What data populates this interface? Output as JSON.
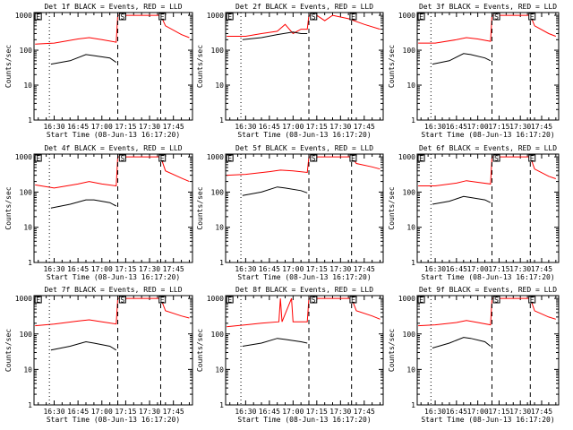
{
  "chart_data": [
    {
      "type": "line",
      "title": "Det 1f BLACK = Events, RED = LLD",
      "xlabel": "Start Time (08-Jun-13 16:17:20)",
      "ylabel": "Counts/sec",
      "xlim": [
        "16:17:20",
        "17:57:00"
      ],
      "ylim": [
        1,
        1200
      ],
      "yscale": "log",
      "x_ticks": [
        "16:30",
        "16:45",
        "17:00",
        "17:15",
        "17:30",
        "17:45"
      ],
      "y_ticks": [
        "1",
        "10",
        "100",
        "1000"
      ],
      "markers": [
        {
          "time": "16:27",
          "style": "dotted"
        },
        {
          "time": "17:10",
          "style": "dashed"
        },
        {
          "time": "17:37",
          "style": "dashed"
        }
      ],
      "box_labels": [
        {
          "time": "16:18",
          "label": "E"
        },
        {
          "time": "17:11",
          "label": "S"
        },
        {
          "time": "17:36",
          "label": "E"
        }
      ],
      "series": [
        {
          "color": "#ff0000",
          "x": [
            "16:18",
            "16:30",
            "16:45",
            "16:52",
            "17:00",
            "17:09",
            "17:10",
            "17:37",
            "17:40",
            "17:50",
            "17:55"
          ],
          "y": [
            150,
            160,
            210,
            230,
            200,
            170,
            1000,
            1000,
            500,
            280,
            230
          ]
        },
        {
          "color": "#000000",
          "x": [
            "16:28",
            "16:40",
            "16:50",
            "16:55",
            "17:05",
            "17:09"
          ],
          "y": [
            40,
            50,
            75,
            70,
            60,
            45
          ]
        }
      ]
    },
    {
      "type": "line",
      "title": "Det 2f BLACK = Events, RED = LLD",
      "xlabel": "Start Time (08-Jun-13 16:17:20)",
      "ylabel": "Counts/sec",
      "xlim": [
        "16:17:20",
        "17:57:00"
      ],
      "ylim": [
        1,
        1200
      ],
      "yscale": "log",
      "x_ticks": [
        "16:30",
        "16:45",
        "17:00",
        "17:15",
        "17:30",
        "17:45"
      ],
      "y_ticks": [
        "1",
        "10",
        "100",
        "1000"
      ],
      "markers": [
        {
          "time": "16:27",
          "style": "dotted"
        },
        {
          "time": "17:10",
          "style": "dashed"
        },
        {
          "time": "17:37",
          "style": "dashed"
        }
      ],
      "box_labels": [
        {
          "time": "16:18",
          "label": "E"
        },
        {
          "time": "17:11",
          "label": "S"
        },
        {
          "time": "17:36",
          "label": "E"
        }
      ],
      "series": [
        {
          "color": "#ff0000",
          "x": [
            "16:18",
            "16:30",
            "16:40",
            "16:50",
            "16:55",
            "17:00",
            "17:05",
            "17:09",
            "17:10",
            "17:15",
            "17:20",
            "17:25",
            "17:35",
            "17:45",
            "17:55"
          ],
          "y": [
            250,
            250,
            300,
            350,
            550,
            300,
            400,
            400,
            1000,
            1000,
            700,
            1000,
            800,
            550,
            400
          ]
        },
        {
          "color": "#000000",
          "x": [
            "16:28",
            "16:40",
            "16:50",
            "17:00",
            "17:05",
            "17:09"
          ],
          "y": [
            200,
            230,
            280,
            330,
            300,
            300
          ]
        }
      ]
    },
    {
      "type": "line",
      "title": "Det 3f BLACK = Events, RED = LLD",
      "xlabel": "Start Time (08-Jun-13 16:17:20)",
      "ylabel": "Counts/sec",
      "xlim": [
        "16:17:20",
        "17:57:00"
      ],
      "ylim": [
        1,
        1200
      ],
      "yscale": "log",
      "x_ticks": [
        "16:30",
        "16:45",
        "17:00",
        "17:15",
        "17:30",
        "17:45"
      ],
      "y_ticks": [
        "1",
        "10",
        "100",
        "1000"
      ],
      "markers": [
        {
          "time": "16:27",
          "style": "dotted"
        },
        {
          "time": "17:10",
          "style": "dashed"
        },
        {
          "time": "17:37",
          "style": "dashed"
        }
      ],
      "box_labels": [
        {
          "time": "16:18",
          "label": "E"
        },
        {
          "time": "17:11",
          "label": "S"
        },
        {
          "time": "17:36",
          "label": "E"
        }
      ],
      "series": [
        {
          "color": "#ff0000",
          "x": [
            "16:18",
            "16:30",
            "16:45",
            "16:52",
            "17:00",
            "17:09",
            "17:10",
            "17:37",
            "17:40",
            "17:50",
            "17:55"
          ],
          "y": [
            160,
            160,
            200,
            230,
            210,
            180,
            1000,
            1000,
            500,
            300,
            250
          ]
        },
        {
          "color": "#000000",
          "x": [
            "16:28",
            "16:40",
            "16:50",
            "16:55",
            "17:05",
            "17:09"
          ],
          "y": [
            40,
            50,
            80,
            75,
            60,
            50
          ]
        }
      ]
    },
    {
      "type": "line",
      "title": "Det 4f BLACK = Events, RED = LLD",
      "xlabel": "Start Time (08-Jun-13 16:17:20)",
      "ylabel": "Counts/sec",
      "xlim": [
        "16:17:20",
        "17:57:00"
      ],
      "ylim": [
        1,
        1200
      ],
      "yscale": "log",
      "x_ticks": [
        "16:30",
        "16:45",
        "17:00",
        "17:15",
        "17:30",
        "17:45"
      ],
      "y_ticks": [
        "1",
        "10",
        "100",
        "1000"
      ],
      "markers": [
        {
          "time": "16:27",
          "style": "dotted"
        },
        {
          "time": "17:10",
          "style": "dashed"
        },
        {
          "time": "17:37",
          "style": "dashed"
        }
      ],
      "box_labels": [
        {
          "time": "16:18",
          "label": "E"
        },
        {
          "time": "17:11",
          "label": "S"
        },
        {
          "time": "17:36",
          "label": "E"
        }
      ],
      "series": [
        {
          "color": "#ff0000",
          "x": [
            "16:18",
            "16:30",
            "16:45",
            "16:52",
            "17:00",
            "17:09",
            "17:10",
            "17:37",
            "17:40",
            "17:50",
            "17:55"
          ],
          "y": [
            160,
            130,
            170,
            200,
            170,
            150,
            1000,
            1000,
            400,
            250,
            200
          ]
        },
        {
          "color": "#000000",
          "x": [
            "16:28",
            "16:40",
            "16:50",
            "16:55",
            "17:05",
            "17:09"
          ],
          "y": [
            35,
            45,
            60,
            60,
            50,
            40
          ]
        }
      ]
    },
    {
      "type": "line",
      "title": "Det 5f BLACK = Events, RED = LLD",
      "xlabel": "Start Time (08-Jun-13 16:17:20)",
      "ylabel": "Counts/sec",
      "xlim": [
        "16:17:20",
        "17:57:00"
      ],
      "ylim": [
        1,
        1200
      ],
      "yscale": "log",
      "x_ticks": [
        "16:30",
        "16:45",
        "17:00",
        "17:15",
        "17:30",
        "17:45"
      ],
      "y_ticks": [
        "1",
        "10",
        "100",
        "1000"
      ],
      "markers": [
        {
          "time": "16:27",
          "style": "dotted"
        },
        {
          "time": "17:10",
          "style": "dashed"
        },
        {
          "time": "17:37",
          "style": "dashed"
        }
      ],
      "box_labels": [
        {
          "time": "16:18",
          "label": "E"
        },
        {
          "time": "17:11",
          "label": "S"
        },
        {
          "time": "17:36",
          "label": "E"
        }
      ],
      "series": [
        {
          "color": "#ff0000",
          "x": [
            "16:18",
            "16:30",
            "16:45",
            "16:52",
            "17:00",
            "17:09",
            "17:10",
            "17:37",
            "17:40",
            "17:50",
            "17:55"
          ],
          "y": [
            300,
            320,
            380,
            420,
            400,
            360,
            1000,
            1000,
            650,
            520,
            450
          ]
        },
        {
          "color": "#000000",
          "x": [
            "16:28",
            "16:40",
            "16:50",
            "16:55",
            "17:05",
            "17:09"
          ],
          "y": [
            80,
            100,
            140,
            130,
            110,
            95
          ]
        }
      ]
    },
    {
      "type": "line",
      "title": "Det 6f BLACK = Events, RED = LLD",
      "xlabel": "Start Time (08-Jun-13 16:17:20)",
      "ylabel": "Counts/sec",
      "xlim": [
        "16:17:20",
        "17:57:00"
      ],
      "ylim": [
        1,
        1200
      ],
      "yscale": "log",
      "x_ticks": [
        "16:30",
        "16:45",
        "17:00",
        "17:15",
        "17:30",
        "17:45"
      ],
      "y_ticks": [
        "1",
        "10",
        "100",
        "1000"
      ],
      "markers": [
        {
          "time": "16:27",
          "style": "dotted"
        },
        {
          "time": "17:10",
          "style": "dashed"
        },
        {
          "time": "17:37",
          "style": "dashed"
        }
      ],
      "box_labels": [
        {
          "time": "16:18",
          "label": "E"
        },
        {
          "time": "17:11",
          "label": "S"
        },
        {
          "time": "17:36",
          "label": "E"
        }
      ],
      "series": [
        {
          "color": "#ff0000",
          "x": [
            "16:18",
            "16:30",
            "16:45",
            "16:52",
            "17:00",
            "17:09",
            "17:10",
            "17:37",
            "17:40",
            "17:50",
            "17:55"
          ],
          "y": [
            150,
            150,
            180,
            210,
            190,
            170,
            1000,
            1000,
            450,
            280,
            240
          ]
        },
        {
          "color": "#000000",
          "x": [
            "16:28",
            "16:40",
            "16:50",
            "16:55",
            "17:05",
            "17:09"
          ],
          "y": [
            45,
            55,
            75,
            70,
            60,
            50
          ]
        }
      ]
    },
    {
      "type": "line",
      "title": "Det 7f BLACK = Events, RED = LLD",
      "xlabel": "Start Time (08-Jun-13 16:17:20)",
      "ylabel": "Counts/sec",
      "xlim": [
        "16:17:20",
        "17:57:00"
      ],
      "ylim": [
        1,
        1200
      ],
      "yscale": "log",
      "x_ticks": [
        "16:30",
        "16:45",
        "17:00",
        "17:15",
        "17:30",
        "17:45"
      ],
      "y_ticks": [
        "1",
        "10",
        "100",
        "1000"
      ],
      "markers": [
        {
          "time": "16:27",
          "style": "dotted"
        },
        {
          "time": "17:10",
          "style": "dashed"
        },
        {
          "time": "17:37",
          "style": "dashed"
        }
      ],
      "box_labels": [
        {
          "time": "16:18",
          "label": "E"
        },
        {
          "time": "17:11",
          "label": "S"
        },
        {
          "time": "17:36",
          "label": "E"
        }
      ],
      "series": [
        {
          "color": "#ff0000",
          "x": [
            "16:18",
            "16:30",
            "16:45",
            "16:52",
            "17:00",
            "17:09",
            "17:10",
            "17:37",
            "17:40",
            "17:50",
            "17:55"
          ],
          "y": [
            170,
            190,
            230,
            250,
            220,
            190,
            1000,
            1000,
            450,
            320,
            280
          ]
        },
        {
          "color": "#000000",
          "x": [
            "16:28",
            "16:40",
            "16:50",
            "16:55",
            "17:05",
            "17:09"
          ],
          "y": [
            35,
            45,
            60,
            55,
            45,
            35
          ]
        }
      ]
    },
    {
      "type": "line",
      "title": "Det 8f BLACK = Events, RED = LLD",
      "xlabel": "Start Time (08-Jun-13 16:17:20)",
      "ylabel": "Counts/sec",
      "xlim": [
        "16:17:20",
        "17:57:00"
      ],
      "ylim": [
        1,
        1200
      ],
      "yscale": "log",
      "x_ticks": [
        "16:30",
        "16:45",
        "17:00",
        "17:15",
        "17:30",
        "17:45"
      ],
      "y_ticks": [
        "1",
        "10",
        "100",
        "1000"
      ],
      "markers": [
        {
          "time": "16:27",
          "style": "dotted"
        },
        {
          "time": "17:10",
          "style": "dashed"
        },
        {
          "time": "17:37",
          "style": "dashed"
        }
      ],
      "box_labels": [
        {
          "time": "16:18",
          "label": "E"
        },
        {
          "time": "17:11",
          "label": "S"
        },
        {
          "time": "17:36",
          "label": "E"
        }
      ],
      "series": [
        {
          "color": "#ff0000",
          "x": [
            "16:18",
            "16:30",
            "16:40",
            "16:51",
            "16:52",
            "16:53",
            "16:59",
            "17:00",
            "17:09",
            "17:10",
            "17:37",
            "17:40",
            "17:50",
            "17:55"
          ],
          "y": [
            160,
            180,
            200,
            220,
            1000,
            220,
            1000,
            220,
            220,
            1000,
            1000,
            450,
            320,
            260
          ]
        },
        {
          "color": "#000000",
          "x": [
            "16:28",
            "16:40",
            "16:50",
            "16:55",
            "17:05",
            "17:09"
          ],
          "y": [
            45,
            55,
            75,
            70,
            60,
            55
          ]
        }
      ]
    },
    {
      "type": "line",
      "title": "Det 9f BLACK = Events, RED = LLD",
      "xlabel": "Start Time (08-Jun-13 16:17:20)",
      "ylabel": "Counts/sec",
      "xlim": [
        "16:17:20",
        "17:57:00"
      ],
      "ylim": [
        1,
        1200
      ],
      "yscale": "log",
      "x_ticks": [
        "16:30",
        "16:45",
        "17:00",
        "17:15",
        "17:30",
        "17:45"
      ],
      "y_ticks": [
        "1",
        "10",
        "100",
        "1000"
      ],
      "markers": [
        {
          "time": "16:27",
          "style": "dotted"
        },
        {
          "time": "17:10",
          "style": "dashed"
        },
        {
          "time": "17:37",
          "style": "dashed"
        }
      ],
      "box_labels": [
        {
          "time": "16:18",
          "label": "E"
        },
        {
          "time": "17:11",
          "label": "S"
        },
        {
          "time": "17:36",
          "label": "E"
        }
      ],
      "series": [
        {
          "color": "#ff0000",
          "x": [
            "16:18",
            "16:30",
            "16:45",
            "16:52",
            "17:00",
            "17:09",
            "17:10",
            "17:37",
            "17:40",
            "17:50",
            "17:55"
          ],
          "y": [
            170,
            180,
            210,
            240,
            210,
            180,
            1000,
            1000,
            450,
            300,
            260
          ]
        },
        {
          "color": "#000000",
          "x": [
            "16:28",
            "16:40",
            "16:50",
            "16:55",
            "17:05",
            "17:09"
          ],
          "y": [
            40,
            55,
            80,
            75,
            60,
            45
          ]
        }
      ]
    }
  ]
}
